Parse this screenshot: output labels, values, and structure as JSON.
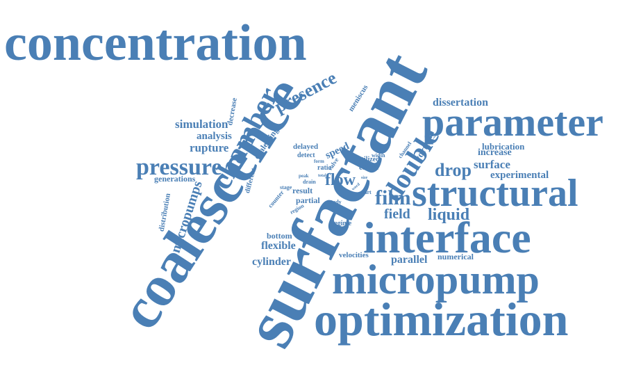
{
  "cloud": {
    "color": "#4a7fb5",
    "words": [
      {
        "text": "concentration"
      },
      {
        "text": "coalescence"
      },
      {
        "text": "surfactant"
      },
      {
        "text": "parameter"
      },
      {
        "text": "structural"
      },
      {
        "text": "interface"
      },
      {
        "text": "micropump"
      },
      {
        "text": "optimization"
      },
      {
        "text": "double"
      },
      {
        "text": "chamber"
      },
      {
        "text": "pressure"
      },
      {
        "text": "presence"
      },
      {
        "text": "micropumps"
      },
      {
        "text": "film"
      },
      {
        "text": "flow"
      },
      {
        "text": "drop"
      },
      {
        "text": "field"
      },
      {
        "text": "liquid"
      },
      {
        "text": "simulation"
      },
      {
        "text": "analysis"
      },
      {
        "text": "rupture"
      },
      {
        "text": "dissertation"
      },
      {
        "text": "meniscus"
      },
      {
        "text": "surface"
      },
      {
        "text": "experimental"
      },
      {
        "text": "lubrication"
      },
      {
        "text": "increase"
      },
      {
        "text": "vortices"
      },
      {
        "text": "speed"
      },
      {
        "text": "delayed"
      },
      {
        "text": "detect"
      },
      {
        "text": "coalescing"
      },
      {
        "text": "decrease"
      },
      {
        "text": "different"
      },
      {
        "text": "distribution"
      },
      {
        "text": "generations"
      },
      {
        "text": "bottom"
      },
      {
        "text": "flexible"
      },
      {
        "text": "cylinder"
      },
      {
        "text": "parallel"
      },
      {
        "text": "numerical"
      },
      {
        "text": "velocities"
      },
      {
        "text": "regime"
      },
      {
        "text": "partial"
      },
      {
        "text": "result"
      },
      {
        "text": "counter"
      },
      {
        "text": "region"
      },
      {
        "text": "study"
      },
      {
        "text": "stage"
      },
      {
        "text": "drain"
      },
      {
        "text": "effect"
      },
      {
        "text": "utilized"
      },
      {
        "text": "width"
      },
      {
        "text": "channel"
      },
      {
        "text": "ratio"
      },
      {
        "text": "form"
      },
      {
        "text": "peak"
      },
      {
        "text": "valve"
      },
      {
        "text": "part"
      },
      {
        "text": "size"
      },
      {
        "text": "total"
      },
      {
        "text": "word"
      }
    ]
  }
}
